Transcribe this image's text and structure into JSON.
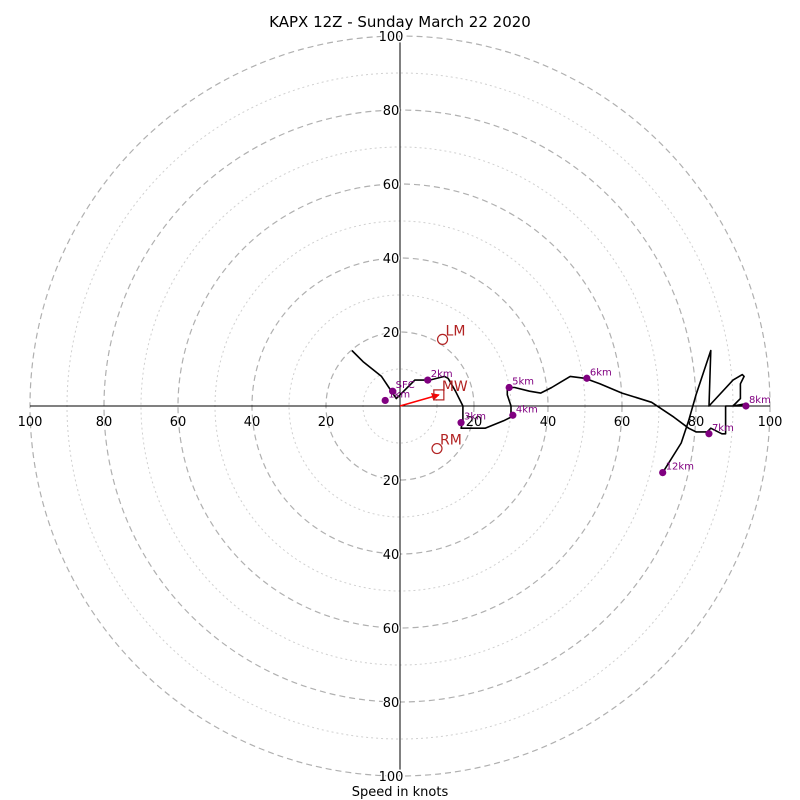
{
  "chart_data": {
    "type": "hodograph",
    "title": "KAPX 12Z - Sunday March 22 2020",
    "xlabel": "Speed in knots",
    "max_speed": 100,
    "major_rings": [
      20,
      40,
      60,
      80,
      100
    ],
    "minor_rings": [
      10,
      30,
      50,
      70,
      90
    ],
    "tick_labels": [
      "20",
      "40",
      "60",
      "80",
      "100"
    ],
    "hodograph_trace": [
      [
        -13,
        15
      ],
      [
        -10,
        12
      ],
      [
        -5,
        8
      ],
      [
        -3,
        5
      ],
      [
        -1,
        2
      ],
      [
        1,
        4
      ],
      [
        3,
        6
      ],
      [
        4,
        7
      ],
      [
        8,
        7
      ],
      [
        12,
        8
      ],
      [
        13,
        7.5
      ],
      [
        15,
        4
      ],
      [
        16,
        2
      ],
      [
        17,
        0
      ],
      [
        17,
        -4
      ],
      [
        16.5,
        -6
      ],
      [
        18,
        -6
      ],
      [
        23,
        -6
      ],
      [
        28,
        -4
      ],
      [
        30,
        -3
      ],
      [
        30,
        0
      ],
      [
        29,
        3
      ],
      [
        29,
        5
      ],
      [
        31,
        5
      ],
      [
        35,
        4
      ],
      [
        38,
        3.5
      ],
      [
        41,
        5
      ],
      [
        46,
        8
      ],
      [
        50,
        7.5
      ],
      [
        54,
        6
      ],
      [
        60,
        3.5
      ],
      [
        68,
        1
      ],
      [
        74,
        -3
      ],
      [
        78,
        -6
      ],
      [
        80,
        -7
      ],
      [
        83,
        -7
      ],
      [
        84,
        -6
      ],
      [
        87,
        -7.5
      ],
      [
        88,
        -7.5
      ],
      [
        88,
        -5
      ],
      [
        88,
        0
      ],
      [
        93,
        0
      ],
      [
        93.5,
        0
      ],
      [
        93,
        0.5
      ],
      [
        90,
        0
      ],
      [
        92,
        2
      ],
      [
        92,
        6
      ],
      [
        93,
        8
      ],
      [
        92.5,
        8.5
      ],
      [
        90,
        7
      ],
      [
        83.5,
        0
      ],
      [
        84,
        15
      ],
      [
        80,
        3
      ],
      [
        78,
        -4
      ],
      [
        76,
        -10
      ],
      [
        71,
        -18
      ]
    ],
    "height_points": [
      {
        "label": "SFC",
        "u": -2,
        "v": 4
      },
      {
        "label": "1km",
        "u": -4,
        "v": 1.5
      },
      {
        "label": "2km",
        "u": 7.5,
        "v": 7
      },
      {
        "label": "3km",
        "u": 16.5,
        "v": -4.5
      },
      {
        "label": "4km",
        "u": 30.5,
        "v": -2.5
      },
      {
        "label": "5km",
        "u": 29.5,
        "v": 5
      },
      {
        "label": "6km",
        "u": 50.5,
        "v": 7.5
      },
      {
        "label": "7km",
        "u": 83.5,
        "v": -7.5
      },
      {
        "label": "8km",
        "u": 93.5,
        "v": 0
      },
      {
        "label": "12km",
        "u": 71,
        "v": -18
      }
    ],
    "motion_points": [
      {
        "label": "LM",
        "u": 11.5,
        "v": 18,
        "shape": "circle"
      },
      {
        "label": "MW",
        "u": 10.5,
        "v": 3,
        "shape": "square"
      },
      {
        "label": "RM",
        "u": 10,
        "v": -11.5,
        "shape": "circle"
      }
    ],
    "storm_vector": {
      "u": 10.5,
      "v": 3
    },
    "colors": {
      "trace": "#000000",
      "height_points": "#800080",
      "motion": "#b22222",
      "vector": "#ff0000",
      "major_ring": "#b0b0b0",
      "minor_ring": "#d0d0d0"
    }
  }
}
